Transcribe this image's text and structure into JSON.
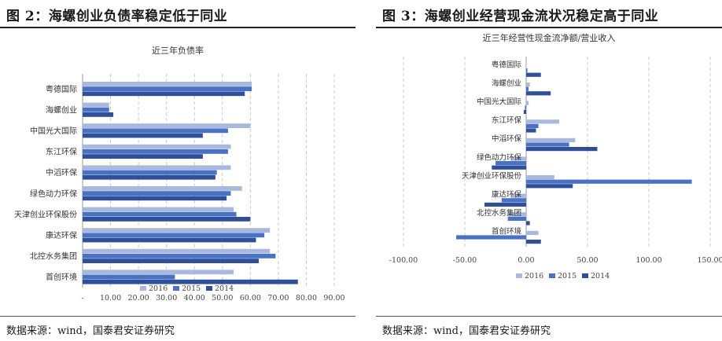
{
  "left_panel": {
    "figure_title": "图 2：海螺创业负债率稳定低于同业",
    "source": "数据来源：wind，国泰君安证券研究"
  },
  "right_panel": {
    "figure_title": "图 3：海螺创业经营现金流状况稳定高于同业",
    "source": "数据来源：wind，国泰君安证券研究"
  },
  "colors": {
    "2016": "#a9b8de",
    "2015": "#4a72c4",
    "2014": "#2f4f98"
  },
  "chart_data": [
    {
      "type": "bar",
      "orientation": "horizontal",
      "title": "近三年负债率",
      "categories": [
        "粤德国际",
        "海螺创业",
        "中国光大国际",
        "东江环保",
        "中滔环保",
        "绿色动力环保",
        "天津创业环保股份",
        "康达环保",
        "北控水务集团",
        "首创环境"
      ],
      "series": [
        {
          "name": "2016",
          "values": [
            60.5,
            9.5,
            60,
            53,
            53,
            57,
            54,
            67,
            67,
            54
          ]
        },
        {
          "name": "2015",
          "values": [
            60.5,
            9.5,
            52,
            52,
            48,
            53,
            55,
            65,
            69,
            33
          ]
        },
        {
          "name": "2014",
          "values": [
            58,
            11,
            43,
            43,
            47.5,
            51.5,
            60,
            62,
            63,
            77
          ]
        }
      ],
      "xlim": [
        0,
        90
      ],
      "xticks": [
        "-",
        "10.00",
        "20.00",
        "30.00",
        "40.00",
        "50.00",
        "60.00",
        "70.00",
        "80.00",
        "90.00"
      ],
      "legend": "bottom",
      "grid": true
    },
    {
      "type": "bar",
      "orientation": "horizontal",
      "title": "近三年经营性现金流净额/营业收入",
      "categories": [
        "粤德国际",
        "海螺创业",
        "中国光大国际",
        "东江环保",
        "中滔环保",
        "绿色动力环保",
        "天津创业环保股份",
        "康达环保",
        "北控水务集团",
        "首创环境"
      ],
      "series": [
        {
          "name": "2016",
          "values": [
            0,
            3,
            2,
            27,
            40,
            -12,
            23,
            -12,
            -15,
            10
          ]
        },
        {
          "name": "2015",
          "values": [
            1,
            2,
            -1,
            10,
            35,
            -25,
            135,
            -20,
            -15,
            -57
          ]
        },
        {
          "name": "2014",
          "values": [
            12,
            20,
            -2,
            8,
            58,
            -28,
            38,
            -34,
            3,
            12
          ]
        }
      ],
      "xlim": [
        -100,
        150
      ],
      "xticks": [
        "-100.00",
        "-50.00",
        "0.00",
        "50.00",
        "100.00",
        "150.00"
      ],
      "legend": "bottom",
      "grid": true
    }
  ]
}
